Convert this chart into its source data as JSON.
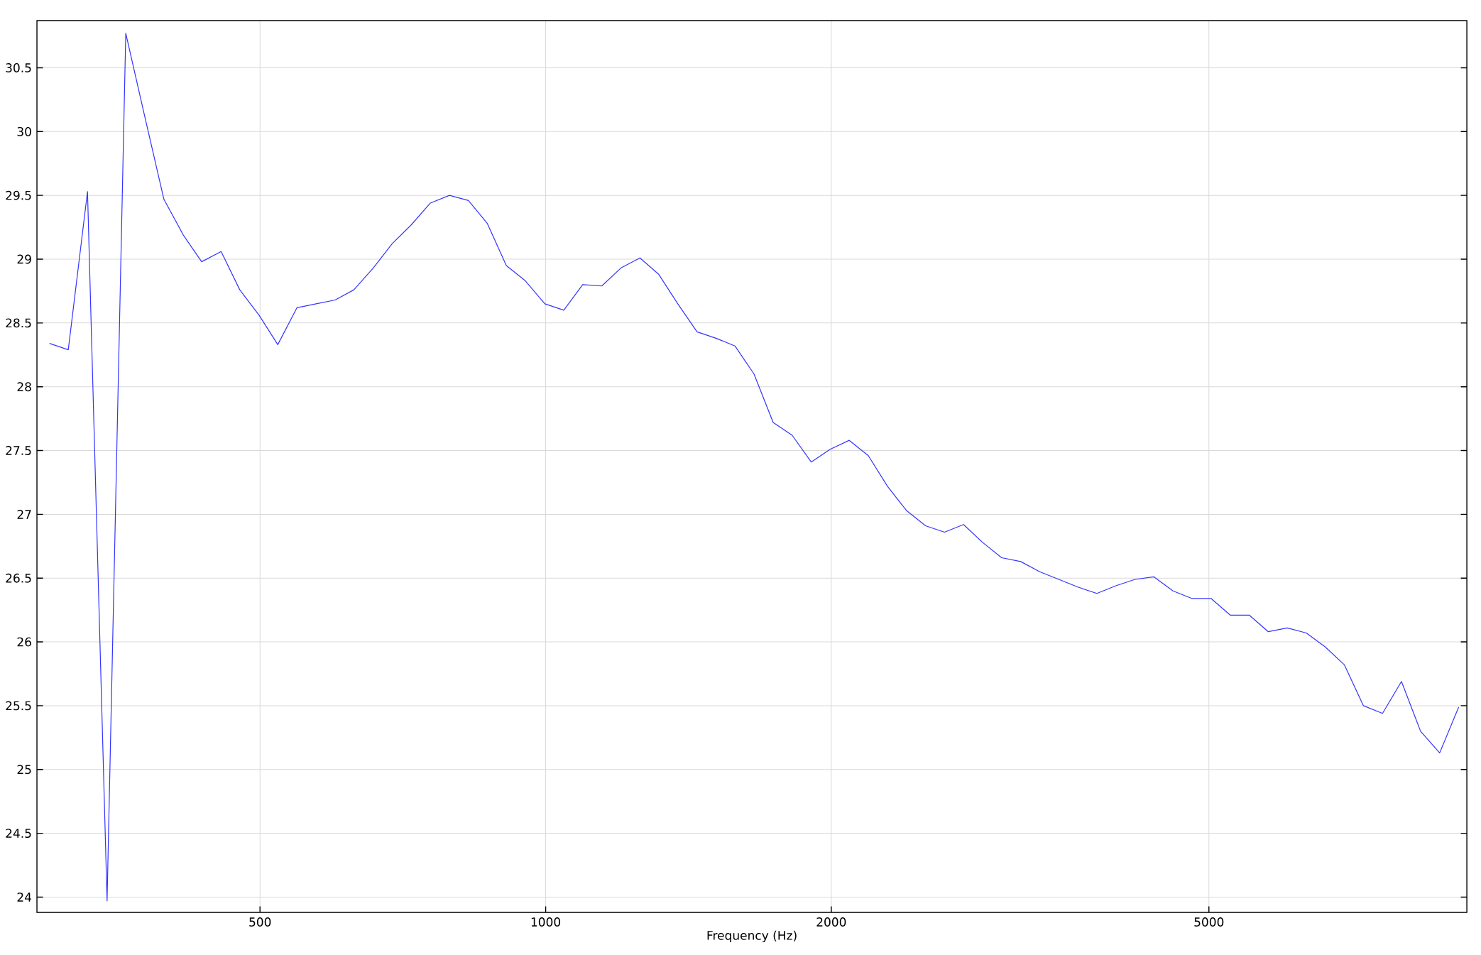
{
  "chart_data": {
    "type": "line",
    "xlabel": "Frequency (Hz)",
    "log": "x",
    "grid": true,
    "marker": "none",
    "line_style": "solid",
    "xlim": [
      291,
      9350
    ],
    "ylim": [
      23.88,
      30.87
    ],
    "xticks": [
      500,
      1000,
      2000,
      5000
    ],
    "yticks": [
      24,
      24.5,
      25,
      25.5,
      26,
      26.5,
      27,
      27.5,
      28,
      28.5,
      29,
      29.5,
      30,
      30.5
    ],
    "x": [
      300,
      314,
      329,
      345,
      361,
      378,
      396,
      415,
      434,
      455,
      476,
      499,
      522,
      547,
      573,
      600,
      628,
      658,
      689,
      722,
      756,
      792,
      829,
      868,
      909,
      952,
      998,
      1045,
      1094,
      1146,
      1200,
      1257,
      1316,
      1378,
      1444,
      1512,
      1583,
      1658,
      1737,
      1819,
      1905,
      1995,
      2089,
      2188,
      2292,
      2400,
      2514,
      2632,
      2757,
      2887,
      3024,
      3167,
      3317,
      3474,
      3638,
      3810,
      3990,
      4179,
      4376,
      4583,
      4800,
      5027,
      5265,
      5514,
      5775,
      6048,
      6334,
      6633,
      6947,
      7276,
      7620,
      7980,
      8357,
      8753,
      9167
    ],
    "series": [
      {
        "color": "#3333ff",
        "values": [
          28.34,
          28.29,
          29.53,
          23.97,
          30.77,
          30.12,
          29.47,
          29.19,
          28.98,
          29.06,
          28.76,
          28.56,
          28.33,
          28.62,
          28.65,
          28.68,
          28.76,
          28.93,
          29.12,
          29.27,
          29.44,
          29.5,
          29.46,
          29.28,
          28.95,
          28.83,
          28.65,
          28.6,
          28.8,
          28.79,
          28.93,
          29.01,
          28.88,
          28.65,
          28.43,
          28.38,
          28.32,
          28.1,
          27.72,
          27.62,
          27.41,
          27.51,
          27.58,
          27.46,
          27.22,
          27.03,
          26.91,
          26.86,
          26.92,
          26.78,
          26.66,
          26.63,
          26.55,
          26.49,
          26.43,
          26.38,
          26.44,
          26.49,
          26.51,
          26.4,
          26.34,
          26.34,
          26.21,
          26.21,
          26.08,
          26.11,
          26.07,
          25.96,
          25.82,
          25.5,
          25.44,
          25.69,
          25.3,
          25.13,
          25.49
        ]
      }
    ]
  }
}
